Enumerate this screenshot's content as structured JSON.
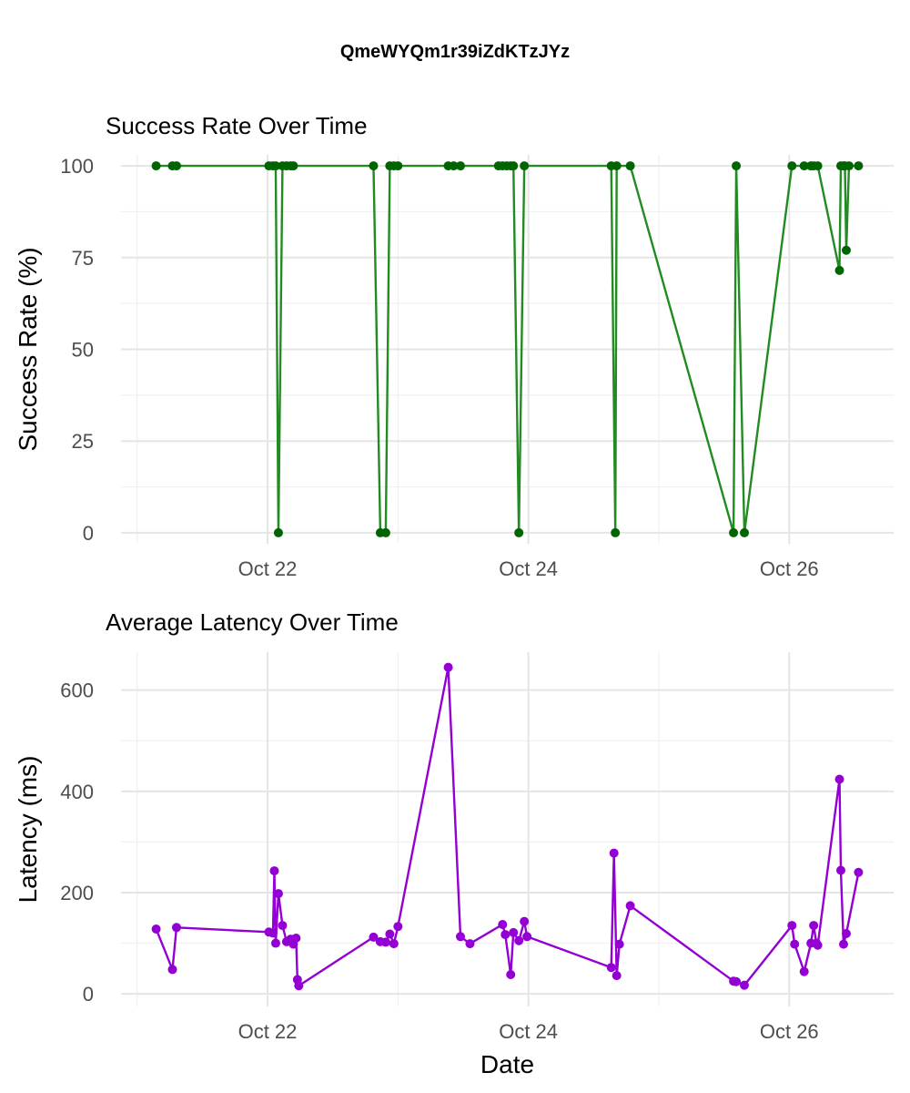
{
  "title": "QmeWYQm1r39iZdKTzJYz",
  "x_axis_label": "Date",
  "x_ticks": [
    {
      "date": "2024-10-22",
      "label": "Oct 22"
    },
    {
      "date": "2024-10-24",
      "label": "Oct 24"
    },
    {
      "date": "2024-10-26",
      "label": "Oct 26"
    }
  ],
  "chart_data": [
    {
      "type": "line",
      "title": "Success Rate Over Time",
      "xlabel": "",
      "ylabel": "Success Rate (%)",
      "ylim": [
        -3,
        103
      ],
      "yticks": [
        0,
        25,
        50,
        75,
        100
      ],
      "color": "#228B22",
      "point_color": "#006400",
      "grid": true,
      "x": [
        "2024-10-21 03:30",
        "2024-10-21 06:30",
        "2024-10-21 07:15",
        "2024-10-22 00:15",
        "2024-10-22 01:00",
        "2024-10-22 01:30",
        "2024-10-22 02:00",
        "2024-10-22 02:45",
        "2024-10-22 03:30",
        "2024-10-22 04:15",
        "2024-10-22 04:45",
        "2024-10-22 19:30",
        "2024-10-22 20:45",
        "2024-10-22 21:45",
        "2024-10-22 22:30",
        "2024-10-22 23:15",
        "2024-10-23 00:00",
        "2024-10-23 09:15",
        "2024-10-23 10:15",
        "2024-10-23 11:30",
        "2024-10-23 18:30",
        "2024-10-23 19:15",
        "2024-10-23 20:00",
        "2024-10-23 20:45",
        "2024-10-23 21:15",
        "2024-10-23 22:15",
        "2024-10-23 23:15",
        "2024-10-24 15:15",
        "2024-10-24 16:00",
        "2024-10-24 16:15",
        "2024-10-24 18:45",
        "2024-10-25 13:45",
        "2024-10-25 14:15",
        "2024-10-25 15:45",
        "2024-10-26 00:30",
        "2024-10-26 02:45",
        "2024-10-26 04:00",
        "2024-10-26 04:30",
        "2024-10-26 05:15",
        "2024-10-26 09:15",
        "2024-10-26 09:30",
        "2024-10-26 10:00",
        "2024-10-26 10:15",
        "2024-10-26 10:30",
        "2024-10-26 11:00",
        "2024-10-26 12:45"
      ],
      "values": [
        100,
        100,
        100,
        100,
        100,
        100,
        0,
        100,
        100,
        100,
        100,
        100,
        0,
        0,
        100,
        100,
        100,
        100,
        100,
        100,
        100,
        100,
        100,
        100,
        100,
        0,
        100,
        100,
        0,
        100,
        100,
        0,
        100,
        0,
        100,
        100,
        100,
        100,
        100,
        71.5,
        100,
        100,
        100,
        77,
        100,
        100
      ]
    },
    {
      "type": "line",
      "title": "Average Latency Over Time",
      "xlabel": "Date",
      "ylabel": "Latency (ms)",
      "ylim": [
        -25,
        675
      ],
      "yticks": [
        0,
        200,
        400,
        600
      ],
      "color": "#9400D3",
      "point_color": "#9400D3",
      "grid": true,
      "x": [
        "2024-10-21 03:30",
        "2024-10-21 06:30",
        "2024-10-21 07:15",
        "2024-10-22 00:15",
        "2024-10-22 01:00",
        "2024-10-22 01:15",
        "2024-10-22 01:30",
        "2024-10-22 02:00",
        "2024-10-22 02:45",
        "2024-10-22 03:30",
        "2024-10-22 04:15",
        "2024-10-22 04:45",
        "2024-10-22 05:15",
        "2024-10-22 05:30",
        "2024-10-22 05:45",
        "2024-10-22 19:30",
        "2024-10-22 20:45",
        "2024-10-22 21:45",
        "2024-10-22 22:30",
        "2024-10-22 23:15",
        "2024-10-23 00:00",
        "2024-10-23 09:15",
        "2024-10-23 11:30",
        "2024-10-23 13:15",
        "2024-10-23 19:15",
        "2024-10-23 19:45",
        "2024-10-23 20:45",
        "2024-10-23 21:15",
        "2024-10-23 22:15",
        "2024-10-23 23:15",
        "2024-10-23 23:45",
        "2024-10-24 15:15",
        "2024-10-24 15:45",
        "2024-10-24 16:15",
        "2024-10-24 16:45",
        "2024-10-24 18:45",
        "2024-10-25 13:45",
        "2024-10-25 14:15",
        "2024-10-25 15:45",
        "2024-10-26 00:30",
        "2024-10-26 01:00",
        "2024-10-26 02:45",
        "2024-10-26 04:00",
        "2024-10-26 04:30",
        "2024-10-26 05:00",
        "2024-10-26 05:15",
        "2024-10-26 09:15",
        "2024-10-26 09:30",
        "2024-10-26 10:00",
        "2024-10-26 10:30",
        "2024-10-26 12:45"
      ],
      "values": [
        128,
        48,
        131,
        122,
        120,
        243,
        100,
        198,
        135,
        103,
        108,
        98,
        110,
        28,
        16,
        112,
        103,
        102,
        118,
        99,
        133,
        645,
        113,
        99,
        137,
        117,
        38,
        121,
        105,
        143,
        113,
        52,
        278,
        36,
        98,
        174,
        25,
        24,
        17,
        135,
        98,
        44,
        100,
        135,
        100,
        96,
        424,
        244,
        98,
        119,
        240
      ]
    }
  ]
}
